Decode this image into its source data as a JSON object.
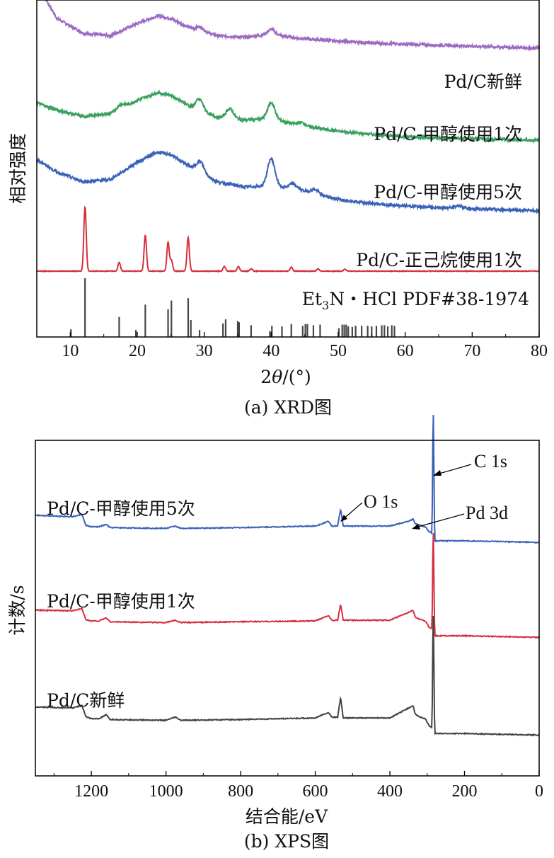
{
  "chart_data": [
    {
      "type": "line",
      "title": "",
      "caption": "(a) XRD图",
      "xlabel": "2θ/(°)",
      "xlabel_parts": [
        "2",
        "θ",
        "/(°)"
      ],
      "ylabel": "相对强度",
      "xlim": [
        5,
        80
      ],
      "x_ticks": [
        10,
        20,
        30,
        40,
        50,
        60,
        70,
        80
      ],
      "y_ticks_shown": false,
      "series": [
        {
          "name": "Pd/C新鲜",
          "color": "#9b6bc4",
          "x": [
            5,
            8,
            12,
            16,
            20,
            23,
            25,
            28,
            32,
            36,
            40,
            44,
            50,
            56,
            62,
            70,
            80
          ],
          "y": [
            6.3,
            5.6,
            5.3,
            5.25,
            5.5,
            5.65,
            5.6,
            5.4,
            5.25,
            5.22,
            5.28,
            5.2,
            5.14,
            5.1,
            5.07,
            5.04,
            5.0
          ],
          "peaks": [
            [
              29.4,
              0.08
            ],
            [
              40.0,
              0.1
            ]
          ]
        },
        {
          "name": "Pd/C-甲醇使用1次",
          "color": "#3aa060",
          "x": [
            5,
            8,
            12,
            16,
            20,
            23,
            25,
            28,
            32,
            36,
            40,
            44,
            50,
            56,
            62,
            70,
            80
          ],
          "y": [
            3.9,
            3.75,
            3.62,
            3.68,
            3.95,
            4.1,
            4.05,
            3.82,
            3.6,
            3.55,
            3.58,
            3.45,
            3.32,
            3.25,
            3.2,
            3.17,
            3.14
          ],
          "peaks": [
            [
              17.5,
              0.08
            ],
            [
              29.3,
              0.22
            ],
            [
              33.8,
              0.2
            ],
            [
              40.0,
              0.32
            ],
            [
              44.5,
              0.06
            ]
          ]
        },
        {
          "name": "Pd/C-甲醇使用5次",
          "color": "#3a62b8",
          "x": [
            5,
            8,
            12,
            16,
            20,
            23,
            25,
            28,
            32,
            36,
            40,
            44,
            50,
            56,
            62,
            70,
            80
          ],
          "y": [
            2.75,
            2.5,
            2.3,
            2.35,
            2.7,
            2.9,
            2.85,
            2.6,
            2.3,
            2.2,
            2.22,
            2.15,
            1.95,
            1.85,
            1.8,
            1.76,
            1.72
          ],
          "peaks": [
            [
              29.4,
              0.22
            ],
            [
              40.0,
              0.55
            ],
            [
              43.2,
              0.1
            ],
            [
              46.5,
              0.08
            ],
            [
              68.0,
              0.05
            ]
          ]
        },
        {
          "name": "Pd/C-正己烷使用1次",
          "color": "#d6303e",
          "x": [
            5,
            80
          ],
          "y": [
            0.5,
            0.5
          ],
          "peaks": [
            [
              12.2,
              1.3
            ],
            [
              17.3,
              0.18
            ],
            [
              21.2,
              0.72
            ],
            [
              24.6,
              0.58
            ],
            [
              25.1,
              0.22
            ],
            [
              27.6,
              0.68
            ],
            [
              33.0,
              0.1
            ],
            [
              35.1,
              0.09
            ],
            [
              37.0,
              0.05
            ],
            [
              43.0,
              0.08
            ],
            [
              47.0,
              0.05
            ],
            [
              51.0,
              0.04
            ]
          ]
        }
      ],
      "reference": {
        "name": "Et₃N・HCl PDF#38-1974",
        "name_main": "Et",
        "name_sub": "3",
        "name_rest": "N・HCl PDF#38-1974",
        "color": "#454545",
        "x": [
          10.1,
          12.2,
          17.3,
          19.8,
          21.2,
          24.6,
          25.1,
          27.6,
          28.0,
          29.3,
          32.8,
          33.2,
          35.0,
          35.2,
          37.0,
          39.8,
          40.1,
          41.6,
          43.0,
          44.7,
          45.1,
          45.4,
          46.3,
          47.3,
          50.1,
          50.6,
          50.9,
          51.2,
          51.5,
          52.1,
          52.6,
          53.5,
          54.4,
          55.0,
          55.7,
          56.5,
          56.9,
          57.4,
          58.0,
          58.4
        ],
        "y": [
          0.13,
          1.0,
          0.34,
          0.12,
          0.55,
          0.47,
          0.62,
          0.66,
          0.29,
          0.12,
          0.23,
          0.3,
          0.27,
          0.25,
          0.2,
          0.1,
          0.19,
          0.18,
          0.22,
          0.19,
          0.22,
          0.22,
          0.2,
          0.21,
          0.15,
          0.21,
          0.21,
          0.21,
          0.18,
          0.17,
          0.19,
          0.19,
          0.19,
          0.18,
          0.19,
          0.2,
          0.2,
          0.18,
          0.2,
          0.19
        ]
      }
    },
    {
      "type": "line",
      "title": "",
      "caption": "(b) XPS图",
      "xlabel": "结合能/eV",
      "ylabel": "计数/s",
      "xlim": [
        1350,
        0
      ],
      "x_ticks": [
        1200,
        1000,
        800,
        600,
        400,
        200,
        0
      ],
      "y_ticks_shown": false,
      "series": [
        {
          "name": "Pd/C-甲醇使用5次",
          "color": "#3a62b8",
          "x": [
            1350,
            1250,
            1225,
            1215,
            1200,
            1180,
            1160,
            1150,
            1000,
            975,
            960,
            800,
            600,
            565,
            555,
            540,
            532,
            525,
            400,
            345,
            338,
            332,
            320,
            305,
            295,
            287,
            284,
            280,
            200,
            100,
            0
          ],
          "y": [
            0.83,
            0.81,
            0.84,
            0.7,
            0.68,
            0.68,
            0.71,
            0.67,
            0.66,
            0.69,
            0.66,
            0.67,
            0.69,
            0.75,
            0.69,
            0.69,
            0.91,
            0.69,
            0.69,
            0.76,
            0.78,
            0.72,
            0.7,
            0.68,
            0.62,
            0.6,
            2.35,
            0.5,
            0.5,
            0.49,
            0.48
          ]
        },
        {
          "name": "Pd/C-甲醇使用1次",
          "color": "#d6303e",
          "x": [
            1350,
            1250,
            1225,
            1215,
            1200,
            1180,
            1160,
            1150,
            1000,
            975,
            960,
            800,
            600,
            565,
            555,
            540,
            532,
            525,
            400,
            345,
            338,
            332,
            320,
            305,
            295,
            287,
            284,
            280,
            200,
            100,
            0
          ],
          "y": [
            0.82,
            0.81,
            0.84,
            0.7,
            0.68,
            0.68,
            0.72,
            0.67,
            0.66,
            0.69,
            0.66,
            0.67,
            0.68,
            0.75,
            0.69,
            0.69,
            0.9,
            0.69,
            0.69,
            0.8,
            0.82,
            0.73,
            0.7,
            0.68,
            0.6,
            0.58,
            2.0,
            0.49,
            0.49,
            0.48,
            0.47
          ]
        },
        {
          "name": "Pd/C新鲜",
          "color": "#444444",
          "x": [
            1350,
            1250,
            1225,
            1215,
            1200,
            1180,
            1160,
            1150,
            1000,
            975,
            960,
            800,
            600,
            565,
            555,
            540,
            532,
            525,
            400,
            345,
            338,
            332,
            320,
            305,
            295,
            287,
            284,
            280,
            200,
            100,
            0
          ],
          "y": [
            0.82,
            0.81,
            0.84,
            0.7,
            0.67,
            0.67,
            0.72,
            0.66,
            0.65,
            0.69,
            0.65,
            0.66,
            0.68,
            0.75,
            0.69,
            0.69,
            0.95,
            0.68,
            0.68,
            0.82,
            0.84,
            0.73,
            0.69,
            0.67,
            0.58,
            0.56,
            2.2,
            0.48,
            0.48,
            0.47,
            0.46
          ]
        }
      ],
      "annotations": [
        {
          "text": "C 1s",
          "x": 284
        },
        {
          "text": "O 1s",
          "x": 532
        },
        {
          "text": "Pd 3d",
          "x": 338
        }
      ]
    }
  ]
}
